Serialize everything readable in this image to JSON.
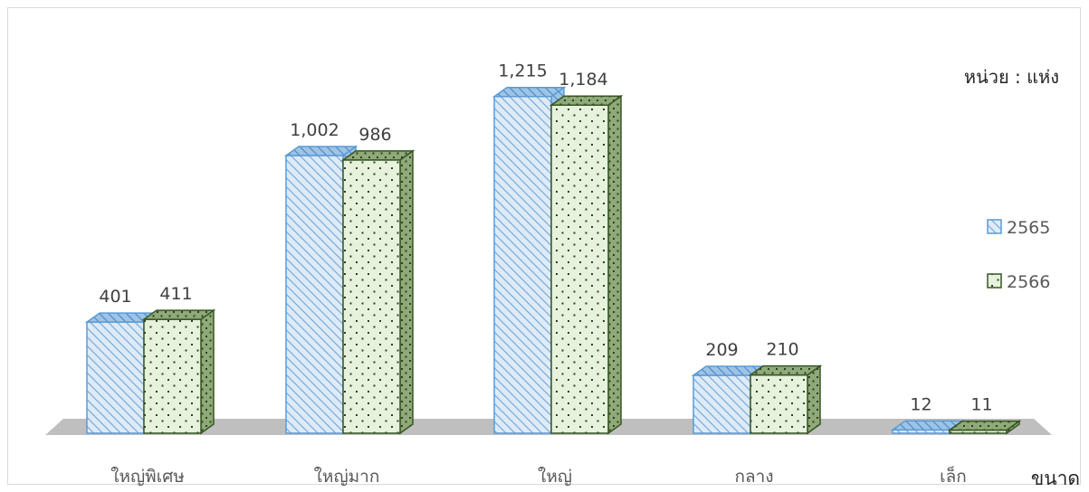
{
  "chart_data": {
    "type": "bar",
    "style": "3d-clustered-column",
    "unit_label": "หน่วย :  แห่ง",
    "xlabel": "ขนาด",
    "ylabel": "",
    "categories": [
      "ใหญ่พิเศษ",
      "ใหญ่มาก",
      "ใหญ่",
      "กลาง",
      "เล็ก"
    ],
    "series": [
      {
        "name": "2565",
        "values": [
          401,
          1002,
          1215,
          209,
          12
        ],
        "labels": [
          "401",
          "1,002",
          "1,215",
          "209",
          "12"
        ],
        "color": "#5b9bd5",
        "pattern": "diagonal-stripes"
      },
      {
        "name": "2566",
        "values": [
          411,
          986,
          1184,
          210,
          11
        ],
        "labels": [
          "411",
          "986",
          "1,184",
          "210",
          "11"
        ],
        "color": "#375623",
        "pattern": "dots"
      }
    ],
    "ylim": [
      0,
      1300
    ],
    "legend_position": "right",
    "gridlines": false
  }
}
